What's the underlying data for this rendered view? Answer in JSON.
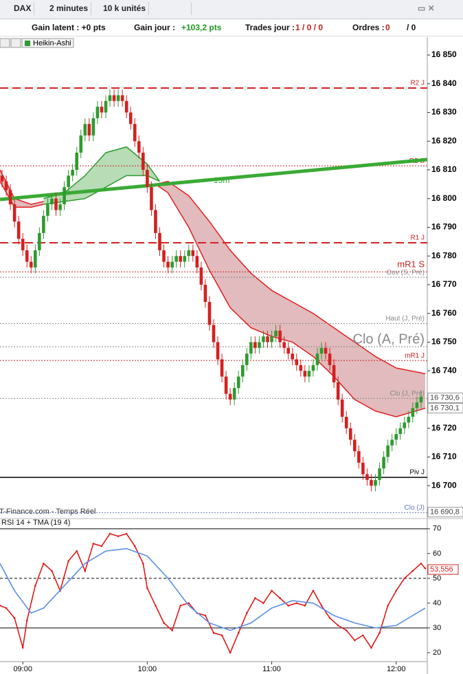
{
  "toolbar": {
    "instrument": "DAX",
    "period": "2 minutes",
    "size": "10 k unités"
  },
  "status": {
    "gain_latent": "Gain latent : +0 pts",
    "gain_jour_label": "Gain jour :",
    "gain_jour_value": "+103,2 pts",
    "trades_label": "Trades jour :",
    "trades_value": "1 / 0 / 0",
    "ordres_label": "Ordres :",
    "ordres_value": "0",
    "ordres_total": "/ 0"
  },
  "chart_data": [
    {
      "type": "candlestick",
      "chart_style": "Heikin-Ashi",
      "source": "IT-Finance.com - Temps Réel",
      "up_color": "#2f9a2f",
      "down_color": "#d42020",
      "x": [
        "08:50",
        "08:52",
        "08:54",
        "08:56",
        "08:58",
        "09:00",
        "09:02",
        "09:04",
        "09:06",
        "09:08",
        "09:10",
        "09:12",
        "09:14",
        "09:16",
        "09:18",
        "09:20",
        "09:22",
        "09:24",
        "09:26",
        "09:28",
        "09:30",
        "09:32",
        "09:34",
        "09:36",
        "09:38",
        "09:40",
        "09:42",
        "09:44",
        "09:46",
        "09:48",
        "09:50",
        "09:52",
        "09:54",
        "09:56",
        "09:58",
        "10:00",
        "10:02",
        "10:04",
        "10:06",
        "10:08",
        "10:10",
        "10:12",
        "10:14",
        "10:16",
        "10:18",
        "10:20",
        "10:22",
        "10:24",
        "10:26",
        "10:28",
        "10:30",
        "10:32",
        "10:34",
        "10:36",
        "10:38",
        "10:40",
        "10:42",
        "10:44",
        "10:46",
        "10:48",
        "10:50",
        "10:52",
        "10:54",
        "10:56",
        "10:58",
        "11:00",
        "11:02",
        "11:04",
        "11:06",
        "11:08",
        "11:10",
        "11:12",
        "11:14",
        "11:16",
        "11:18",
        "11:20",
        "11:22",
        "11:24",
        "11:26",
        "11:28",
        "11:30",
        "11:32",
        "11:34",
        "11:36",
        "11:38",
        "11:40",
        "11:42",
        "11:44",
        "11:46",
        "11:48",
        "11:50",
        "11:52",
        "11:54",
        "11:56",
        "11:58",
        "12:00",
        "12:02",
        "12:04",
        "12:06",
        "12:08",
        "12:10",
        "12:12"
      ],
      "open": [
        16808,
        16806,
        16803,
        16798,
        16792,
        16786,
        16782,
        16778,
        16776,
        16782,
        16788,
        16794,
        16798,
        16800,
        16796,
        16798,
        16804,
        16808,
        16810,
        16816,
        16822,
        16826,
        16822,
        16828,
        16832,
        16830,
        16834,
        16836,
        16834,
        16836,
        16834,
        16830,
        16826,
        16820,
        16816,
        16810,
        16804,
        16796,
        16788,
        16782,
        16778,
        16776,
        16778,
        16780,
        16778,
        16780,
        16782,
        16780,
        16776,
        16770,
        16764,
        16756,
        16750,
        16744,
        16738,
        16732,
        16730,
        16734,
        16738,
        16742,
        16746,
        16750,
        16748,
        16750,
        16752,
        16750,
        16752,
        16754,
        16750,
        16748,
        16746,
        16744,
        16742,
        16740,
        16738,
        16740,
        16742,
        16746,
        16748,
        16746,
        16742,
        16736,
        16730,
        16724,
        16720,
        16716,
        16712,
        16708,
        16704,
        16702,
        16700,
        16702,
        16706,
        16710,
        16714,
        16716,
        16718,
        16720,
        16722,
        16724,
        16727,
        16729
      ],
      "high": [
        16810,
        16808,
        16805,
        16800,
        16794,
        16788,
        16784,
        16780,
        16784,
        16790,
        16796,
        16800,
        16802,
        16802,
        16800,
        16806,
        16810,
        16812,
        16818,
        16824,
        16828,
        16828,
        16830,
        16834,
        16834,
        16836,
        16838,
        16838,
        16838,
        16838,
        16836,
        16832,
        16828,
        16822,
        16818,
        16812,
        16806,
        16798,
        16790,
        16784,
        16780,
        16780,
        16782,
        16782,
        16782,
        16784,
        16784,
        16782,
        16778,
        16772,
        16766,
        16758,
        16752,
        16746,
        16740,
        16734,
        16736,
        16740,
        16744,
        16748,
        16752,
        16752,
        16752,
        16754,
        16754,
        16754,
        16756,
        16756,
        16752,
        16750,
        16748,
        16746,
        16744,
        16742,
        16742,
        16744,
        16748,
        16750,
        16750,
        16748,
        16744,
        16738,
        16732,
        16726,
        16722,
        16718,
        16714,
        16710,
        16706,
        16704,
        16704,
        16708,
        16712,
        16716,
        16718,
        16720,
        16722,
        16724,
        16726,
        16729,
        16731,
        16733
      ],
      "low": [
        16804,
        16801,
        16796,
        16790,
        16784,
        16780,
        16776,
        16774,
        16774,
        16780,
        16786,
        16792,
        16796,
        16794,
        16794,
        16796,
        16802,
        16806,
        16808,
        16814,
        16820,
        16820,
        16820,
        16826,
        16828,
        16828,
        16832,
        16832,
        16832,
        16832,
        16828,
        16824,
        16818,
        16814,
        16808,
        16802,
        16794,
        16786,
        16780,
        16776,
        16774,
        16774,
        16776,
        16776,
        16776,
        16778,
        16778,
        16774,
        16768,
        16762,
        16754,
        16748,
        16742,
        16736,
        16730,
        16728,
        16728,
        16732,
        16736,
        16740,
        16744,
        16746,
        16746,
        16748,
        16748,
        16748,
        16750,
        16748,
        16746,
        16744,
        16742,
        16740,
        16738,
        16736,
        16736,
        16738,
        16740,
        16744,
        16744,
        16740,
        16734,
        16728,
        16722,
        16718,
        16714,
        16710,
        16706,
        16702,
        16700,
        16698,
        16698,
        16700,
        16704,
        16708,
        16712,
        16714,
        16716,
        16718,
        16720,
        16722,
        16725,
        16727
      ],
      "close": [
        16806,
        16803,
        16798,
        16792,
        16786,
        16782,
        16778,
        16776,
        16782,
        16788,
        16794,
        16798,
        16800,
        16796,
        16798,
        16804,
        16808,
        16810,
        16816,
        16822,
        16826,
        16822,
        16828,
        16832,
        16830,
        16834,
        16836,
        16834,
        16836,
        16834,
        16830,
        16826,
        16820,
        16816,
        16810,
        16804,
        16796,
        16788,
        16782,
        16778,
        16776,
        16778,
        16780,
        16778,
        16780,
        16782,
        16780,
        16776,
        16770,
        16764,
        16756,
        16750,
        16744,
        16738,
        16732,
        16730,
        16734,
        16738,
        16742,
        16746,
        16750,
        16748,
        16750,
        16752,
        16750,
        16752,
        16754,
        16750,
        16748,
        16746,
        16744,
        16742,
        16740,
        16738,
        16740,
        16742,
        16746,
        16748,
        16746,
        16742,
        16736,
        16730,
        16724,
        16720,
        16716,
        16712,
        16708,
        16704,
        16702,
        16700,
        16702,
        16706,
        16710,
        16714,
        16716,
        16718,
        16720,
        16722,
        16724,
        16727,
        16729,
        16731
      ],
      "xlim": [
        "08:49",
        "12:15"
      ],
      "ylim": [
        16689.5,
        16856
      ],
      "yticks": [
        {
          "value": 16700,
          "label": "16 700"
        },
        {
          "value": 16710,
          "label": "16 710"
        },
        {
          "value": 16720,
          "label": "16 720"
        },
        {
          "value": 16730,
          "label": "16 730"
        },
        {
          "value": 16740,
          "label": "16 740"
        },
        {
          "value": 16750,
          "label": "16 750"
        },
        {
          "value": 16760,
          "label": "16 760"
        },
        {
          "value": 16770,
          "label": "16 770"
        },
        {
          "value": 16780,
          "label": "16 780"
        },
        {
          "value": 16790,
          "label": "16 790"
        },
        {
          "value": 16800,
          "label": "16 800"
        },
        {
          "value": 16810,
          "label": "16 810"
        },
        {
          "value": 16820,
          "label": "16 820"
        },
        {
          "value": 16830,
          "label": "16 830"
        },
        {
          "value": 16840,
          "label": "16 840"
        },
        {
          "value": 16850,
          "label": "16 850"
        }
      ],
      "bands": [
        {
          "color": "#e02020",
          "fill": "#c98487",
          "x": [
            "08:49",
            "08:56",
            "09:04",
            "09:10"
          ],
          "upper": [
            16810,
            16800,
            16798,
            16799
          ],
          "lower": [
            16806,
            16797,
            16797,
            16798
          ]
        },
        {
          "color": "#2f9a2f",
          "fill": "#7cc07a",
          "x": [
            "09:10",
            "09:20",
            "09:30",
            "09:40",
            "09:50",
            "10:00",
            "10:06"
          ],
          "upper": [
            16800,
            16802,
            16808,
            16816,
            16818,
            16812,
            16806
          ],
          "lower": [
            16798,
            16799,
            16800,
            16804,
            16808,
            16808,
            16806
          ]
        },
        {
          "color": "#e02020",
          "fill": "#c98487",
          "x": [
            "10:04",
            "10:10",
            "10:20",
            "10:30",
            "10:40",
            "10:50",
            "11:00",
            "11:10",
            "11:20",
            "11:30",
            "11:40",
            "11:50",
            "12:00",
            "12:14"
          ],
          "upper": [
            16805,
            16806,
            16801,
            16792,
            16782,
            16774,
            16768,
            16764,
            16760,
            16755,
            16750,
            16745,
            16741,
            16739
          ],
          "lower": [
            16805,
            16802,
            16790,
            16775,
            16762,
            16755,
            16752,
            16750,
            16745,
            16738,
            16730,
            16726,
            16724,
            16727
          ]
        }
      ],
      "series": [
        {
          "name": "15m",
          "color": "#3aaa35",
          "x": [
            "08:49",
            "12:15"
          ],
          "values": [
            16799.7,
            16813.6
          ]
        }
      ],
      "levels": [
        {
          "label": "R2 J",
          "value": 16838.5,
          "color": "#d42020",
          "style": "dashed"
        },
        {
          "label": "R2 S",
          "value": 16811.4,
          "color": "#d42020",
          "style": "dotted"
        },
        {
          "label": "R1 J",
          "value": 16784.6,
          "color": "#d42020",
          "style": "dashed"
        },
        {
          "label": "mR1 S",
          "value": 16774.5,
          "color": "#d42020",
          "style": "dotted",
          "weight": "large"
        },
        {
          "label": "Ouv (S, Pré)",
          "value": 16772.6,
          "color": "#888888",
          "style": "dotted"
        },
        {
          "label": "Haut (J, Pré)",
          "value": 16756.5,
          "color": "#888888",
          "style": "dotted"
        },
        {
          "label": "Clo (A, Pré)",
          "value": 16748.4,
          "color": "#888888",
          "style": "dotted",
          "weight": "large"
        },
        {
          "label": "mR1 J",
          "value": 16743.6,
          "color": "#d42020",
          "style": "dotted"
        },
        {
          "label": "Clo (J, Pré)",
          "value": 16730.4,
          "color": "#888888",
          "style": "dotted"
        },
        {
          "label": "Piv J",
          "value": 16702.9,
          "color": "#000000",
          "style": "solid"
        },
        {
          "label": "Clo (J)",
          "value": 16690.6,
          "color": "#6677bb",
          "style": "dotted"
        }
      ],
      "price_tags": [
        {
          "value": 16730.6,
          "label": "16 730,6"
        },
        {
          "value": 16730.1,
          "label": "16 730,1"
        },
        {
          "value": 16690.8,
          "label": "16 690,8"
        }
      ]
    },
    {
      "type": "line",
      "title": "RSI 14 + TMA (19 4)",
      "series": [
        {
          "color": "#e01818",
          "x": [
            "08:49",
            "08:52",
            "08:56",
            "09:00",
            "09:02",
            "09:06",
            "09:10",
            "09:14",
            "09:18",
            "09:22",
            "09:26",
            "09:30",
            "09:34",
            "09:38",
            "09:42",
            "09:46",
            "09:50",
            "09:54",
            "09:58",
            "10:00",
            "10:04",
            "10:08",
            "10:12",
            "10:16",
            "10:20",
            "10:24",
            "10:28",
            "10:32",
            "10:36",
            "10:40",
            "10:44",
            "10:48",
            "10:52",
            "10:56",
            "11:00",
            "11:04",
            "11:08",
            "11:12",
            "11:16",
            "11:20",
            "11:24",
            "11:28",
            "11:32",
            "11:36",
            "11:40",
            "11:44",
            "11:48",
            "11:52",
            "11:56",
            "12:00",
            "12:04",
            "12:08",
            "12:12",
            "12:14"
          ],
          "values": [
            39,
            38,
            34,
            22,
            33,
            47,
            56,
            53,
            45,
            57,
            61,
            53,
            64,
            63,
            68,
            67,
            68,
            63,
            56,
            46,
            39,
            32,
            29,
            39,
            40,
            36,
            35,
            28,
            27,
            20,
            28,
            36,
            42,
            40,
            45,
            42,
            39,
            40,
            39,
            45,
            39,
            34,
            31,
            29,
            25,
            27,
            22,
            28,
            39,
            45,
            50,
            53,
            56,
            54
          ]
        },
        {
          "color": "#5b8ee6",
          "x": [
            "08:49",
            "08:56",
            "09:04",
            "09:10",
            "09:20",
            "09:30",
            "09:40",
            "09:50",
            "10:00",
            "10:10",
            "10:20",
            "10:30",
            "10:40",
            "10:50",
            "11:00",
            "11:10",
            "11:20",
            "11:30",
            "11:40",
            "11:50",
            "12:00",
            "12:10",
            "12:14"
          ],
          "values": [
            56,
            45,
            36,
            38,
            47,
            56,
            61,
            62,
            59,
            50,
            39,
            32,
            29,
            32,
            38,
            41,
            40,
            35,
            32,
            30,
            31,
            36,
            38
          ]
        }
      ],
      "xlim": [
        "08:49",
        "12:15"
      ],
      "xticks": [
        "09:00",
        "10:00",
        "11:00",
        "12:00"
      ],
      "ylim": [
        16.4,
        73
      ],
      "yticks": [
        20,
        30,
        40,
        50,
        60,
        70
      ],
      "hlines": [
        {
          "value": 70,
          "style": "solid"
        },
        {
          "value": 50,
          "style": "dashed"
        },
        {
          "value": 30,
          "style": "solid"
        }
      ],
      "value_tag": {
        "value": 53.556,
        "label": "53,556"
      }
    }
  ]
}
